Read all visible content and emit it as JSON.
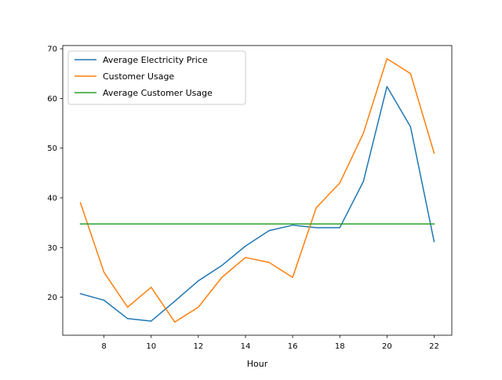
{
  "chart_data": {
    "type": "line",
    "title": "",
    "xlabel": "Hour",
    "ylabel": "",
    "xlim": [
      6.25,
      22.75
    ],
    "ylim": [
      12.35,
      70.65
    ],
    "xticks": [
      8,
      10,
      12,
      14,
      16,
      18,
      20,
      22
    ],
    "yticks": [
      20,
      30,
      40,
      50,
      60,
      70
    ],
    "grid": false,
    "legend_position": "top-left",
    "x": [
      7,
      8,
      9,
      10,
      11,
      12,
      13,
      14,
      15,
      16,
      17,
      18,
      19,
      20,
      21,
      22
    ],
    "series": [
      {
        "name": "Average Electricity Price",
        "color": "#1f77b4",
        "values": [
          20.7,
          19.4,
          15.7,
          15.2,
          19.2,
          23.3,
          26.4,
          30.3,
          33.4,
          34.5,
          34.0,
          34.0,
          43.3,
          62.4,
          54.3,
          31.2
        ]
      },
      {
        "name": "Customer Usage",
        "color": "#ff7f0e",
        "values": [
          39,
          25,
          18,
          22,
          15,
          18,
          24,
          28,
          27,
          24,
          38,
          43,
          53,
          68,
          65,
          49
        ]
      },
      {
        "name": "Average Customer Usage",
        "color": "#2ca02c",
        "values": [
          34.75,
          34.75,
          34.75,
          34.75,
          34.75,
          34.75,
          34.75,
          34.75,
          34.75,
          34.75,
          34.75,
          34.75,
          34.75,
          34.75,
          34.75,
          34.75
        ]
      }
    ]
  }
}
